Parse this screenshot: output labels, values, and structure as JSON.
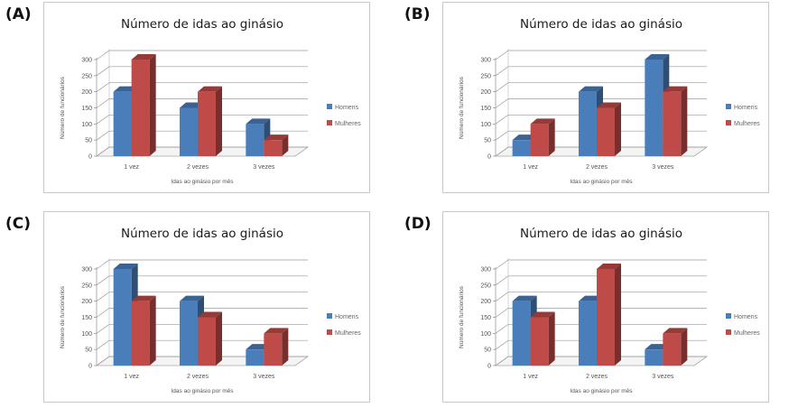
{
  "chart_data": [
    {
      "panel_label": "(A)",
      "type": "bar",
      "title": "Número de idas ao ginásio",
      "xlabel": "Idas ao ginásio por mês",
      "ylabel": "Número de funcionários",
      "categories": [
        "1 vez",
        "2 vezes",
        "3 vezes"
      ],
      "yticks": [
        "0",
        "50",
        "100",
        "150",
        "200",
        "250",
        "300"
      ],
      "ylim": [
        0,
        300
      ],
      "grid": true,
      "legend_position": "right",
      "series": [
        {
          "name": "Homens",
          "color": "#4a7ebb",
          "values": [
            200,
            150,
            100
          ]
        },
        {
          "name": "Mulheres",
          "color": "#be4b48",
          "values": [
            300,
            200,
            50
          ]
        }
      ]
    },
    {
      "panel_label": "(B)",
      "type": "bar",
      "title": "Número de idas ao ginásio",
      "xlabel": "Idas ao ginásio por mês",
      "ylabel": "Número de funcionários",
      "categories": [
        "1 vez",
        "2 vezes",
        "3 vezes"
      ],
      "yticks": [
        "0",
        "50",
        "100",
        "150",
        "200",
        "250",
        "300"
      ],
      "ylim": [
        0,
        300
      ],
      "grid": true,
      "legend_position": "right",
      "series": [
        {
          "name": "Homens",
          "color": "#4a7ebb",
          "values": [
            50,
            200,
            300
          ]
        },
        {
          "name": "Mulheres",
          "color": "#be4b48",
          "values": [
            100,
            150,
            200
          ]
        }
      ]
    },
    {
      "panel_label": "(C)",
      "type": "bar",
      "title": "Número de idas ao ginásio",
      "xlabel": "Idas ao ginásio por mês",
      "ylabel": "Número de funcionários",
      "categories": [
        "1 vez",
        "2 vezes",
        "3 vezes"
      ],
      "yticks": [
        "0",
        "50",
        "100",
        "150",
        "200",
        "250",
        "300"
      ],
      "ylim": [
        0,
        300
      ],
      "grid": true,
      "legend_position": "right",
      "series": [
        {
          "name": "Homens",
          "color": "#4a7ebb",
          "values": [
            300,
            200,
            50
          ]
        },
        {
          "name": "Mulheres",
          "color": "#be4b48",
          "values": [
            200,
            150,
            100
          ]
        }
      ]
    },
    {
      "panel_label": "(D)",
      "type": "bar",
      "title": "Número de idas ao ginásio",
      "xlabel": "Idas ao ginásio por mês",
      "ylabel": "Número de funcionários",
      "categories": [
        "1 vez",
        "2 vezes",
        "3 vezes"
      ],
      "yticks": [
        "0",
        "50",
        "100",
        "150",
        "200",
        "250",
        "300"
      ],
      "ylim": [
        0,
        300
      ],
      "grid": true,
      "legend_position": "right",
      "series": [
        {
          "name": "Homens",
          "color": "#4a7ebb",
          "values": [
            200,
            200,
            50
          ]
        },
        {
          "name": "Mulheres",
          "color": "#be4b48",
          "values": [
            150,
            300,
            100
          ]
        }
      ]
    }
  ]
}
